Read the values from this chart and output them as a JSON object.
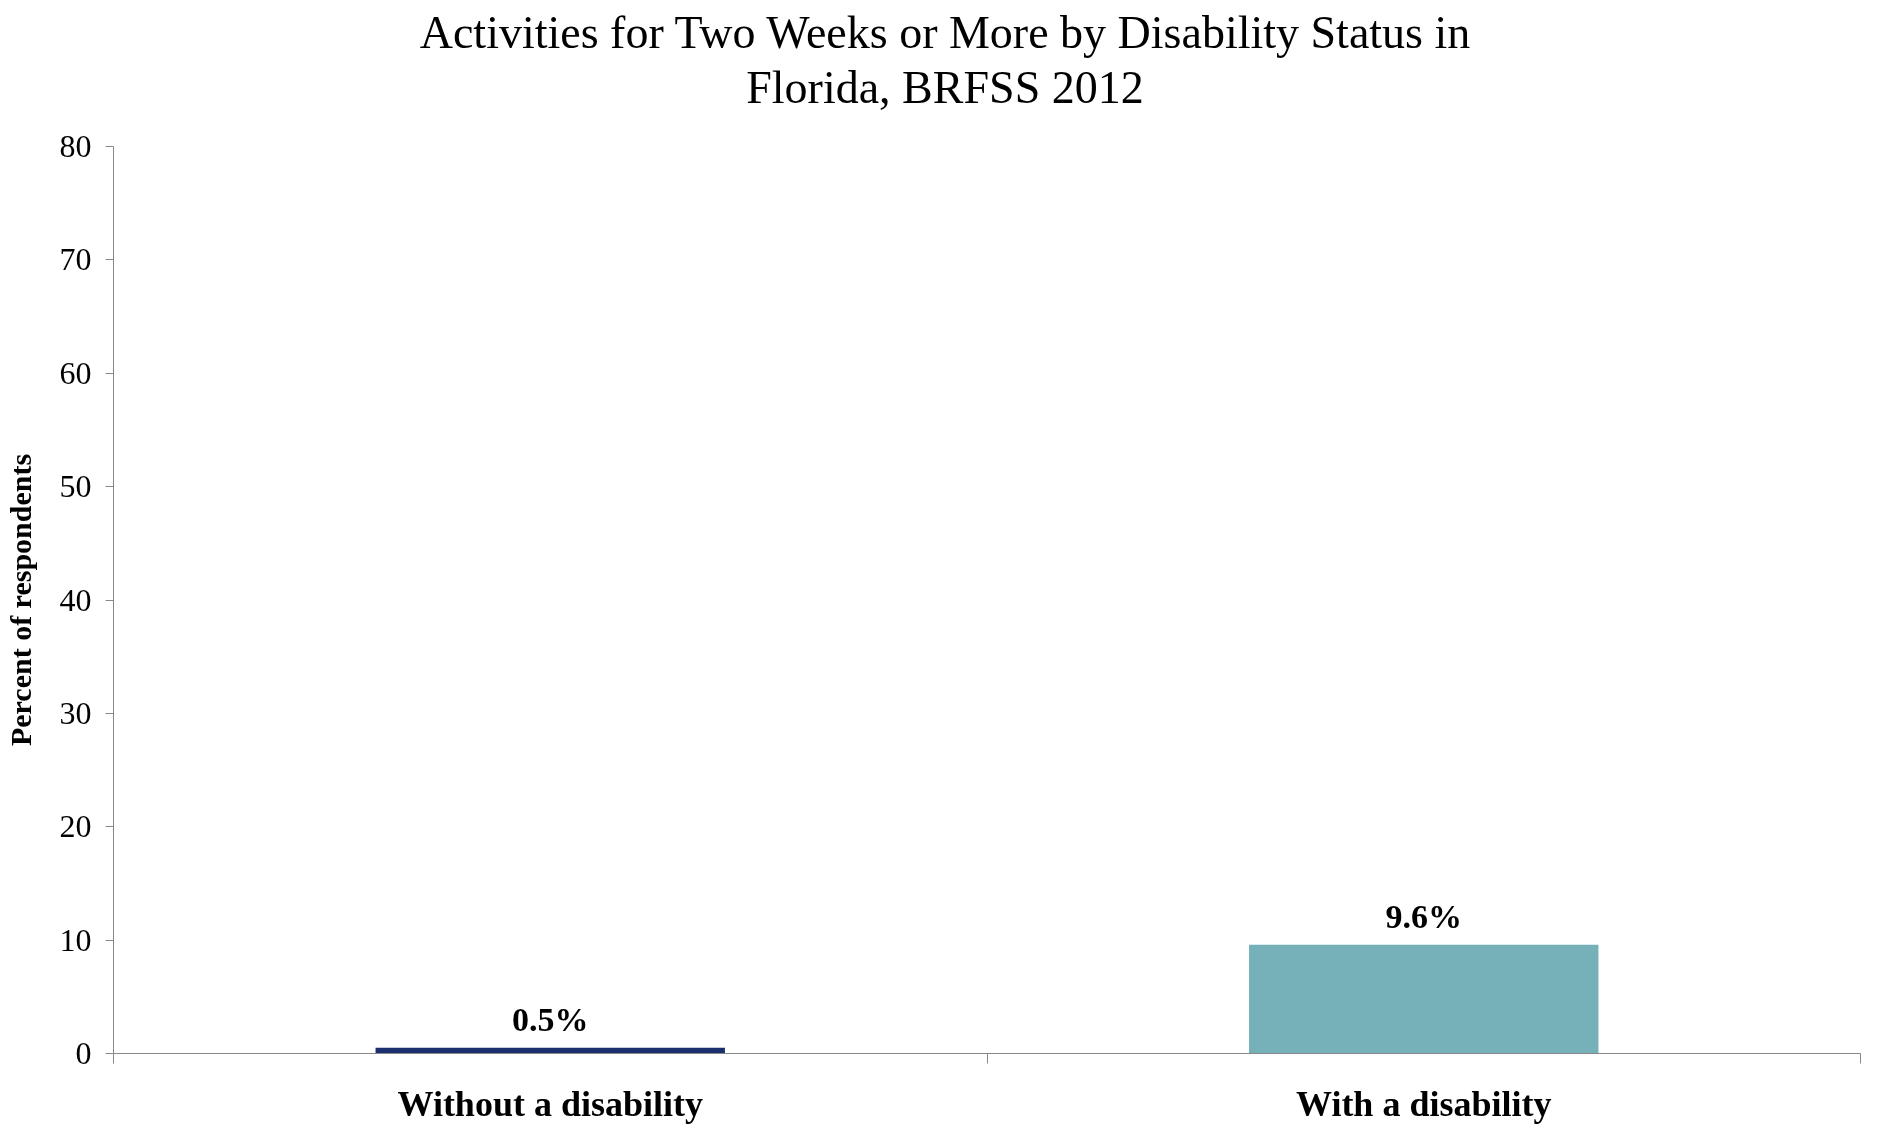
{
  "chart_data": {
    "type": "bar",
    "title": "Activities for Two Weeks or More by Disability Status in\nFlorida, BRFSS 2012",
    "ylabel": "Percent of respondents",
    "categories": [
      "Without a disability",
      "With a disability"
    ],
    "values": [
      0.5,
      9.6
    ],
    "colors": [
      "#1b2f6e",
      "#76b0b9"
    ],
    "value_labels": [
      "0.5%",
      "9.6%"
    ],
    "ylim": [
      0,
      80
    ],
    "yticks": [
      0,
      10,
      20,
      30,
      40,
      50,
      60,
      70,
      80
    ],
    "grid": false
  }
}
